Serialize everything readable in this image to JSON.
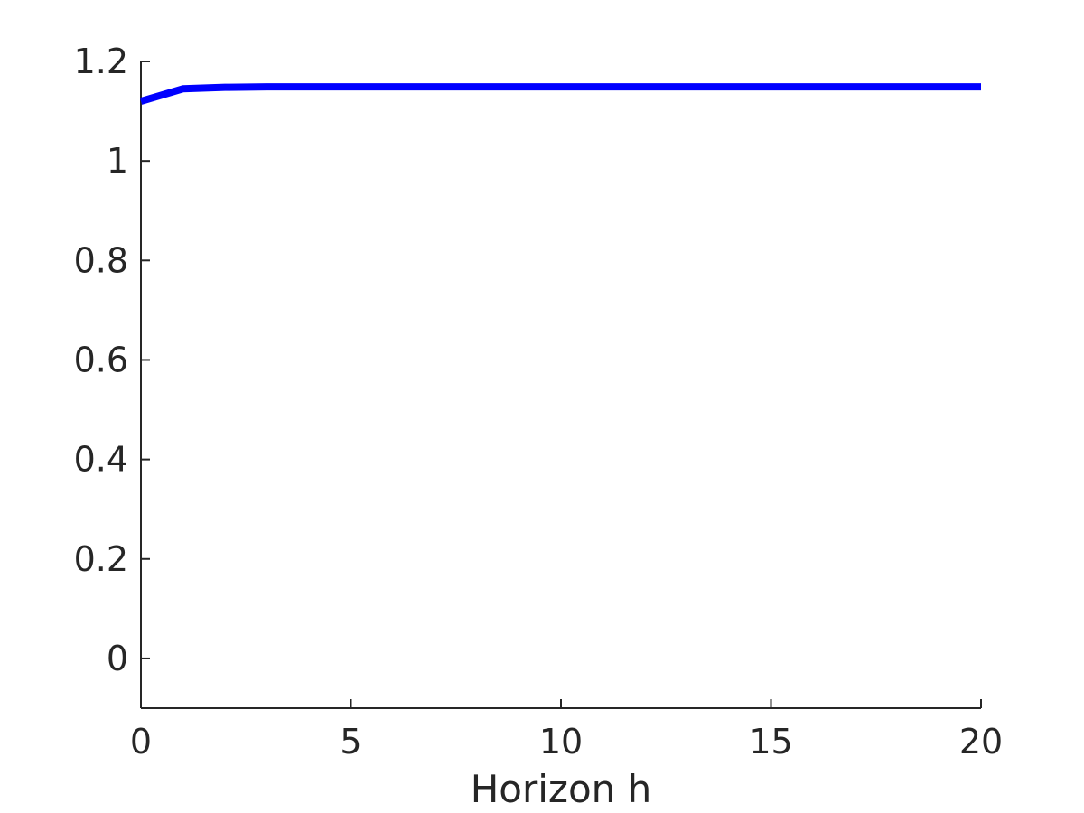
{
  "chart_data": {
    "type": "line",
    "title": "",
    "xlabel": "Horizon h",
    "ylabel": "",
    "xlim": [
      0,
      20
    ],
    "ylim": [
      -0.1,
      1.2
    ],
    "xticks": [
      0,
      5,
      10,
      15,
      20
    ],
    "xtick_labels": [
      "0",
      "5",
      "10",
      "15",
      "20"
    ],
    "yticks": [
      0,
      0.2,
      0.4,
      0.6,
      0.8,
      1,
      1.2
    ],
    "ytick_labels": [
      "0",
      "0.2",
      "0.4",
      "0.6",
      "0.8",
      "1",
      "1.2"
    ],
    "grid": false,
    "series": [
      {
        "color": "#0000ff",
        "x": [
          0,
          1,
          2,
          3,
          4,
          5,
          6,
          7,
          8,
          9,
          10,
          11,
          12,
          13,
          14,
          15,
          16,
          17,
          18,
          19,
          20
        ],
        "y": [
          1.12,
          1.145,
          1.148,
          1.149,
          1.149,
          1.149,
          1.149,
          1.149,
          1.149,
          1.149,
          1.149,
          1.149,
          1.149,
          1.149,
          1.149,
          1.149,
          1.149,
          1.149,
          1.149,
          1.149,
          1.149
        ]
      }
    ]
  }
}
